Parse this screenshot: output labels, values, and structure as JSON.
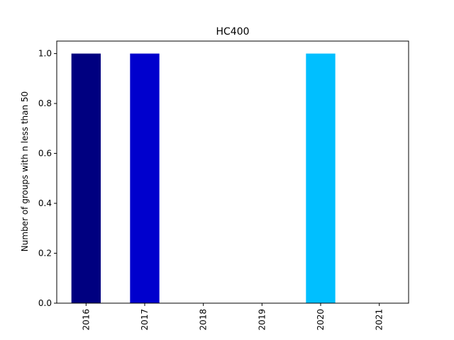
{
  "chart_data": {
    "type": "bar",
    "title": "HC400",
    "xlabel": "",
    "ylabel": "Number of groups with n less than 50",
    "categories": [
      "2016",
      "2017",
      "2018",
      "2019",
      "2020",
      "2021"
    ],
    "values": [
      1,
      1,
      0,
      0,
      1,
      0
    ],
    "bar_colors": [
      "#000080",
      "#0000CD",
      "#0000FF",
      "#1E90FF",
      "#00BFFF",
      "#87CEFA"
    ],
    "ylim": [
      0,
      1.05
    ],
    "yticks": [
      "0.0",
      "0.2",
      "0.4",
      "0.6",
      "0.8",
      "1.0"
    ],
    "ytick_values": [
      0,
      0.2,
      0.4,
      0.6,
      0.8,
      1.0
    ],
    "grid": false,
    "legend": "none"
  }
}
